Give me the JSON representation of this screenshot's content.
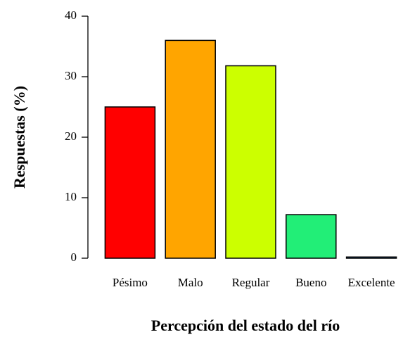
{
  "chart_data": {
    "type": "bar",
    "x_label": "Percepción del estado del río",
    "y_label": "Respuestas (%)",
    "categories": [
      "Pésimo",
      "Malo",
      "Regular",
      "Bueno",
      "Excelente"
    ],
    "values": [
      25,
      36,
      31.8,
      7.2,
      0.2
    ],
    "colors": [
      "#ff0000",
      "#ffa500",
      "#ccff00",
      "#22ee77",
      "#3399ff"
    ],
    "ylim": [
      0,
      40
    ],
    "yticks": [
      0,
      10,
      20,
      30,
      40
    ]
  }
}
